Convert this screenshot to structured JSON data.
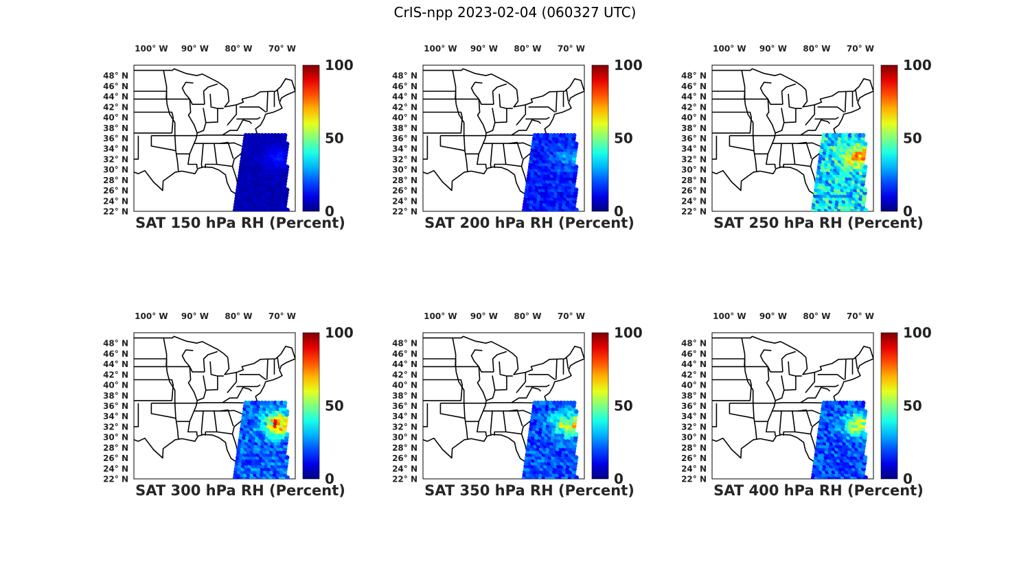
{
  "figure": {
    "title": "CrIS-npp 2023-02-04 (060327 UTC)"
  },
  "map_axes": {
    "lon_ticks": [
      "100° W",
      "90° W",
      "80° W",
      "70° W"
    ],
    "lat_ticks": [
      "48° N",
      "46° N",
      "44° N",
      "42° N",
      "40° N",
      "38° N",
      "36° N",
      "34° N",
      "32° N",
      "30° N",
      "28° N",
      "26° N",
      "24° N",
      "22° N"
    ],
    "lon_range": [
      -104,
      -67
    ],
    "lat_range": [
      22,
      50
    ]
  },
  "colorbar": {
    "colormap": "jet",
    "ticks": [
      "100",
      "50",
      "0"
    ],
    "range": [
      0,
      100
    ]
  },
  "panels": [
    {
      "title": "SAT 150 hPa RH (Percent)",
      "level_hPa": 150,
      "swath_mean_rh": 5,
      "swath_max_rh": 15
    },
    {
      "title": "SAT 200 hPa RH (Percent)",
      "level_hPa": 200,
      "swath_mean_rh": 15,
      "swath_max_rh": 30
    },
    {
      "title": "SAT 250 hPa RH (Percent)",
      "level_hPa": 250,
      "swath_mean_rh": 35,
      "swath_max_rh": 75
    },
    {
      "title": "SAT 300 hPa RH (Percent)",
      "level_hPa": 300,
      "swath_mean_rh": 22,
      "swath_max_rh": 80
    },
    {
      "title": "SAT 350 hPa RH (Percent)",
      "level_hPa": 350,
      "swath_mean_rh": 20,
      "swath_max_rh": 65
    },
    {
      "title": "SAT 400 hPa RH (Percent)",
      "level_hPa": 400,
      "swath_mean_rh": 20,
      "swath_max_rh": 60
    }
  ]
}
